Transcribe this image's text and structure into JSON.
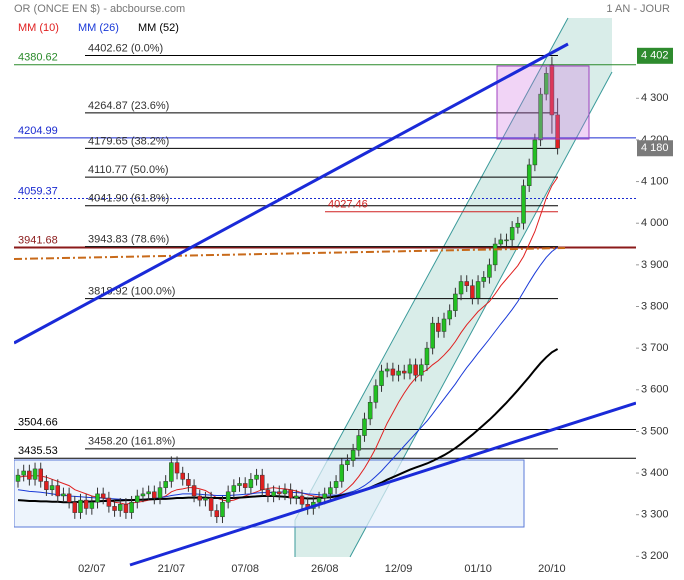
{
  "chart_data": {
    "type": "candlestick",
    "title": "OR (ONCE EN $) - abcbourse.com",
    "period": "1 AN - JOUR",
    "categories": [
      null,
      null,
      null,
      null,
      null,
      null,
      null,
      null,
      null,
      null,
      null,
      null,
      null,
      "02/07",
      null,
      null,
      null,
      null,
      null,
      null,
      null,
      null,
      null,
      null,
      null,
      null,
      null,
      "21/07",
      null,
      null,
      null,
      null,
      null,
      null,
      null,
      null,
      null,
      null,
      null,
      null,
      "07/08",
      null,
      null,
      null,
      null,
      null,
      null,
      null,
      null,
      null,
      null,
      null,
      null,
      null,
      "26/08",
      null,
      null,
      null,
      null,
      null,
      null,
      null,
      null,
      null,
      null,
      null,
      null,
      "12/09",
      null,
      null,
      null,
      null,
      null,
      null,
      null,
      null,
      null,
      null,
      null,
      null,
      null,
      "01/10",
      null,
      null,
      null,
      null,
      null,
      null,
      null,
      null,
      null,
      null,
      null,
      null,
      "20/10",
      null
    ],
    "open": [
      3380,
      3395,
      3405,
      3385,
      3410,
      3380,
      3360,
      3370,
      3345,
      3350,
      3330,
      3305,
      3335,
      3315,
      3330,
      3350,
      3340,
      3320,
      3310,
      3325,
      3305,
      3330,
      3345,
      3350,
      3355,
      3340,
      3365,
      3380,
      3425,
      3400,
      3385,
      3370,
      3345,
      3335,
      3340,
      3310,
      3295,
      3330,
      3355,
      3370,
      3375,
      3365,
      3385,
      3395,
      3360,
      3345,
      3355,
      3350,
      3360,
      3340,
      3345,
      3325,
      3315,
      3330,
      3340,
      3350,
      3365,
      3380,
      3420,
      3430,
      3455,
      3490,
      3530,
      3570,
      3610,
      3645,
      3650,
      3635,
      3645,
      3640,
      3660,
      3635,
      3660,
      3700,
      3760,
      3740,
      3770,
      3790,
      3830,
      3860,
      3850,
      3820,
      3860,
      3870,
      3900,
      3950,
      3960,
      3960,
      3990,
      4000,
      4090,
      4140,
      4200,
      4310,
      4380,
      4260
    ],
    "high": [
      3410,
      3420,
      3420,
      3425,
      3425,
      3395,
      3385,
      3385,
      3365,
      3365,
      3345,
      3350,
      3350,
      3345,
      3365,
      3365,
      3355,
      3335,
      3340,
      3340,
      3345,
      3360,
      3365,
      3370,
      3370,
      3380,
      3395,
      3440,
      3440,
      3415,
      3400,
      3385,
      3360,
      3355,
      3355,
      3325,
      3345,
      3370,
      3385,
      3390,
      3390,
      3400,
      3410,
      3410,
      3375,
      3370,
      3370,
      3375,
      3375,
      3360,
      3360,
      3340,
      3345,
      3355,
      3365,
      3380,
      3395,
      3435,
      3445,
      3470,
      3505,
      3545,
      3585,
      3625,
      3660,
      3665,
      3665,
      3660,
      3660,
      3675,
      3675,
      3675,
      3715,
      3775,
      3775,
      3785,
      3805,
      3845,
      3875,
      3875,
      3865,
      3875,
      3885,
      3915,
      3965,
      3975,
      3975,
      4005,
      4015,
      4105,
      4155,
      4215,
      4325,
      4375,
      4400,
      4300
    ],
    "low": [
      3365,
      3380,
      3370,
      3370,
      3365,
      3345,
      3345,
      3330,
      3330,
      3315,
      3290,
      3290,
      3300,
      3300,
      3315,
      3325,
      3305,
      3295,
      3295,
      3290,
      3290,
      3315,
      3330,
      3335,
      3325,
      3325,
      3350,
      3365,
      3385,
      3370,
      3355,
      3330,
      3320,
      3320,
      3295,
      3280,
      3280,
      3315,
      3340,
      3355,
      3350,
      3350,
      3370,
      3345,
      3330,
      3330,
      3335,
      3335,
      3325,
      3325,
      3310,
      3300,
      3300,
      3315,
      3325,
      3335,
      3350,
      3365,
      3405,
      3415,
      3440,
      3475,
      3515,
      3555,
      3595,
      3630,
      3620,
      3620,
      3625,
      3625,
      3620,
      3620,
      3645,
      3685,
      3725,
      3725,
      3755,
      3775,
      3815,
      3835,
      3805,
      3805,
      3845,
      3855,
      3885,
      3935,
      3945,
      3945,
      3975,
      3985,
      4075,
      4125,
      4185,
      4295,
      4215,
      4165
    ],
    "close": [
      3395,
      3405,
      3385,
      3410,
      3380,
      3360,
      3370,
      3345,
      3350,
      3330,
      3305,
      3335,
      3315,
      3330,
      3350,
      3340,
      3320,
      3310,
      3325,
      3305,
      3330,
      3345,
      3350,
      3355,
      3340,
      3365,
      3380,
      3425,
      3400,
      3385,
      3370,
      3345,
      3335,
      3340,
      3310,
      3295,
      3330,
      3355,
      3370,
      3375,
      3365,
      3385,
      3395,
      3360,
      3345,
      3355,
      3350,
      3360,
      3340,
      3345,
      3325,
      3315,
      3330,
      3340,
      3350,
      3365,
      3380,
      3420,
      3430,
      3455,
      3490,
      3530,
      3570,
      3610,
      3645,
      3650,
      3635,
      3645,
      3640,
      3660,
      3635,
      3660,
      3700,
      3760,
      3740,
      3770,
      3790,
      3830,
      3860,
      3850,
      3820,
      3860,
      3870,
      3900,
      3950,
      3960,
      3960,
      3990,
      4000,
      4090,
      4140,
      4200,
      4310,
      4360,
      4260,
      4180
    ],
    "up_color": "#22c022",
    "down_color": "#e02020",
    "series": [
      {
        "name": "MM (10)",
        "color": "#e02020",
        "values": [
          3390,
          3392,
          3393,
          3394,
          3393,
          3390,
          3385,
          3380,
          3375,
          3370,
          3360,
          3355,
          3350,
          3345,
          3342,
          3340,
          3335,
          3330,
          3328,
          3325,
          3328,
          3330,
          3332,
          3335,
          3337,
          3340,
          3345,
          3355,
          3360,
          3362,
          3365,
          3365,
          3362,
          3358,
          3350,
          3340,
          3335,
          3333,
          3335,
          3340,
          3345,
          3350,
          3355,
          3360,
          3363,
          3365,
          3363,
          3362,
          3360,
          3357,
          3352,
          3348,
          3345,
          3343,
          3342,
          3342,
          3345,
          3352,
          3362,
          3375,
          3392,
          3412,
          3435,
          3460,
          3490,
          3520,
          3545,
          3570,
          3592,
          3612,
          3628,
          3640,
          3648,
          3660,
          3670,
          3683,
          3698,
          3716,
          3737,
          3756,
          3772,
          3788,
          3800,
          3812,
          3830,
          3850,
          3866,
          3882,
          3898,
          3920,
          3950,
          3980,
          4020,
          4060,
          4090,
          4110
        ]
      },
      {
        "name": "MM (26)",
        "color": "#1a3ad8",
        "values": [
          3360,
          3358,
          3356,
          3355,
          3354,
          3352,
          3350,
          3348,
          3347,
          3345,
          3344,
          3343,
          3342,
          3341,
          3340,
          3340,
          3339,
          3338,
          3337,
          3336,
          3336,
          3336,
          3337,
          3338,
          3339,
          3341,
          3343,
          3346,
          3348,
          3350,
          3350,
          3350,
          3349,
          3348,
          3347,
          3346,
          3346,
          3346,
          3347,
          3348,
          3349,
          3350,
          3352,
          3353,
          3353,
          3354,
          3354,
          3355,
          3354,
          3353,
          3352,
          3350,
          3349,
          3348,
          3347,
          3347,
          3347,
          3349,
          3352,
          3356,
          3362,
          3370,
          3380,
          3392,
          3405,
          3420,
          3435,
          3450,
          3465,
          3480,
          3495,
          3510,
          3525,
          3542,
          3560,
          3578,
          3596,
          3614,
          3634,
          3653,
          3670,
          3688,
          3705,
          3722,
          3740,
          3758,
          3775,
          3793,
          3812,
          3835,
          3858,
          3880,
          3900,
          3918,
          3932,
          3942
        ]
      },
      {
        "name": "MM (52)",
        "color": "#000000",
        "values": [
          3335,
          3334,
          3333,
          3333,
          3332,
          3332,
          3331,
          3331,
          3330,
          3330,
          3330,
          3331,
          3331,
          3332,
          3332,
          3333,
          3333,
          3334,
          3334,
          3335,
          3335,
          3336,
          3336,
          3337,
          3337,
          3338,
          3338,
          3339,
          3340,
          3340,
          3341,
          3341,
          3341,
          3341,
          3340,
          3340,
          3340,
          3340,
          3340,
          3341,
          3342,
          3343,
          3344,
          3345,
          3345,
          3345,
          3344,
          3343,
          3342,
          3341,
          3340,
          3339,
          3339,
          3340,
          3341,
          3342,
          3344,
          3346,
          3349,
          3352,
          3356,
          3360,
          3365,
          3371,
          3377,
          3384,
          3390,
          3396,
          3402,
          3408,
          3413,
          3418,
          3423,
          3429,
          3436,
          3443,
          3451,
          3460,
          3470,
          3481,
          3492,
          3504,
          3516,
          3528,
          3541,
          3555,
          3569,
          3584,
          3599,
          3615,
          3631,
          3648,
          3664,
          3678,
          3690,
          3698
        ]
      }
    ],
    "ylim": [
      3160,
      4500
    ],
    "yticks": [
      {
        "value": 3200,
        "label": "3 200"
      },
      {
        "value": 3300,
        "label": "3 300"
      },
      {
        "value": 3400,
        "label": "3 400"
      },
      {
        "value": 3500,
        "label": "3 500"
      },
      {
        "value": 3600,
        "label": "3 600"
      },
      {
        "value": 3700,
        "label": "3 700"
      },
      {
        "value": 3800,
        "label": "3 800"
      },
      {
        "value": 3900,
        "label": "3 900"
      },
      {
        "value": 4000,
        "label": "4 000"
      },
      {
        "value": 4100,
        "label": "4 100"
      },
      {
        "value": 4200,
        "label": "4 200"
      },
      {
        "value": 4300,
        "label": "4 300"
      }
    ],
    "fibonacci": [
      {
        "value": 4402.62,
        "label": "4402.62  (0.0%)"
      },
      {
        "value": 4264.87,
        "label": "4264.87  (23.6%)"
      },
      {
        "value": 4179.65,
        "label": "4179.65  (38.2%)"
      },
      {
        "value": 4110.77,
        "label": "4110.77  (50.0%)"
      },
      {
        "value": 4041.9,
        "label": "4041.90  (61.8%)"
      },
      {
        "value": 3943.83,
        "label": "3943.83  (78.6%)"
      },
      {
        "value": 3818.92,
        "label": "3818.92  (100.0%)"
      },
      {
        "value": 3458.2,
        "label": "3458.20  (161.8%)"
      }
    ],
    "levels": [
      {
        "value": 4380.62,
        "color": "#2a8a2a"
      },
      {
        "value": 4204.99,
        "color": "#1a2ad0"
      },
      {
        "value": 4059.37,
        "color": "#1a2ad0",
        "dashed": true
      },
      {
        "value": 3941.68,
        "color": "#8b1a1a",
        "thick": true
      },
      {
        "value": 3504.66,
        "color": "#000000"
      },
      {
        "value": 3435.53,
        "color": "#000000"
      }
    ],
    "short_level": {
      "value": 4027.46,
      "color": "#d02020"
    },
    "price_tags": [
      {
        "value": 4402,
        "label": "4 402",
        "color": "#2e8b2e"
      },
      {
        "value": 4180,
        "label": "4 180",
        "color": "#7a7a7a"
      }
    ]
  }
}
